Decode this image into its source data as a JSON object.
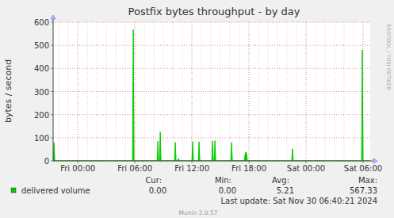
{
  "chart_data": {
    "type": "area",
    "title": "Postfix bytes throughput - by day",
    "y_label": "bytes / second",
    "x": [
      -2.6,
      -2.5,
      -2.42,
      5.75,
      5.83,
      5.91,
      8.34,
      8.42,
      8.5,
      8.59,
      8.67,
      8.75,
      10.17,
      10.25,
      10.33,
      10.5,
      10.58,
      10.66,
      12.0,
      12.08,
      12.16,
      12.67,
      12.75,
      12.83,
      14.09,
      14.17,
      14.25,
      14.34,
      14.42,
      14.5,
      16.09,
      16.17,
      16.25,
      17.5,
      17.6,
      17.67,
      17.75,
      17.83,
      22.5,
      22.58,
      22.66,
      25.25,
      25.33,
      25.41,
      29.84,
      29.92,
      30.0,
      30.75
    ],
    "series": [
      {
        "name": "delivered volume",
        "color": "#00cc00",
        "values": [
          0,
          79,
          0,
          0,
          567.33,
          0,
          0,
          85,
          0,
          0,
          125,
          0,
          0,
          80,
          0,
          0,
          10,
          0,
          0,
          83,
          0,
          0,
          83,
          0,
          0,
          85,
          0,
          0,
          88,
          0,
          0,
          80,
          0,
          0,
          30,
          38,
          30,
          0,
          0,
          52,
          0,
          0,
          2,
          0,
          0,
          480,
          0,
          0
        ]
      }
    ],
    "xlim": [
      -2.6,
      30.75
    ],
    "xticks": [
      {
        "value": 0,
        "label": "Fri 00:00"
      },
      {
        "value": 6,
        "label": "Fri 06:00"
      },
      {
        "value": 12,
        "label": "Fri 12:00"
      },
      {
        "value": 18,
        "label": "Fri 18:00"
      },
      {
        "value": 24,
        "label": "Sat 00:00"
      },
      {
        "value": 30,
        "label": "Sat 06:00"
      }
    ],
    "ylim": [
      0,
      600
    ],
    "yticks": [
      0,
      100,
      200,
      300,
      400,
      500,
      600
    ],
    "grid": true,
    "legend": "bottom",
    "stats": {
      "labels": [
        "Cur:",
        "Min:",
        "Avg:",
        "Max:"
      ],
      "values": [
        "0.00",
        "0.00",
        "5.21",
        "567.33"
      ]
    },
    "last_update": "Last update: Sat Nov 30 06:40:21 2024",
    "footer": "Munin 2.0.57",
    "watermark": "RRDTOOL / TOBI OETIKER"
  }
}
